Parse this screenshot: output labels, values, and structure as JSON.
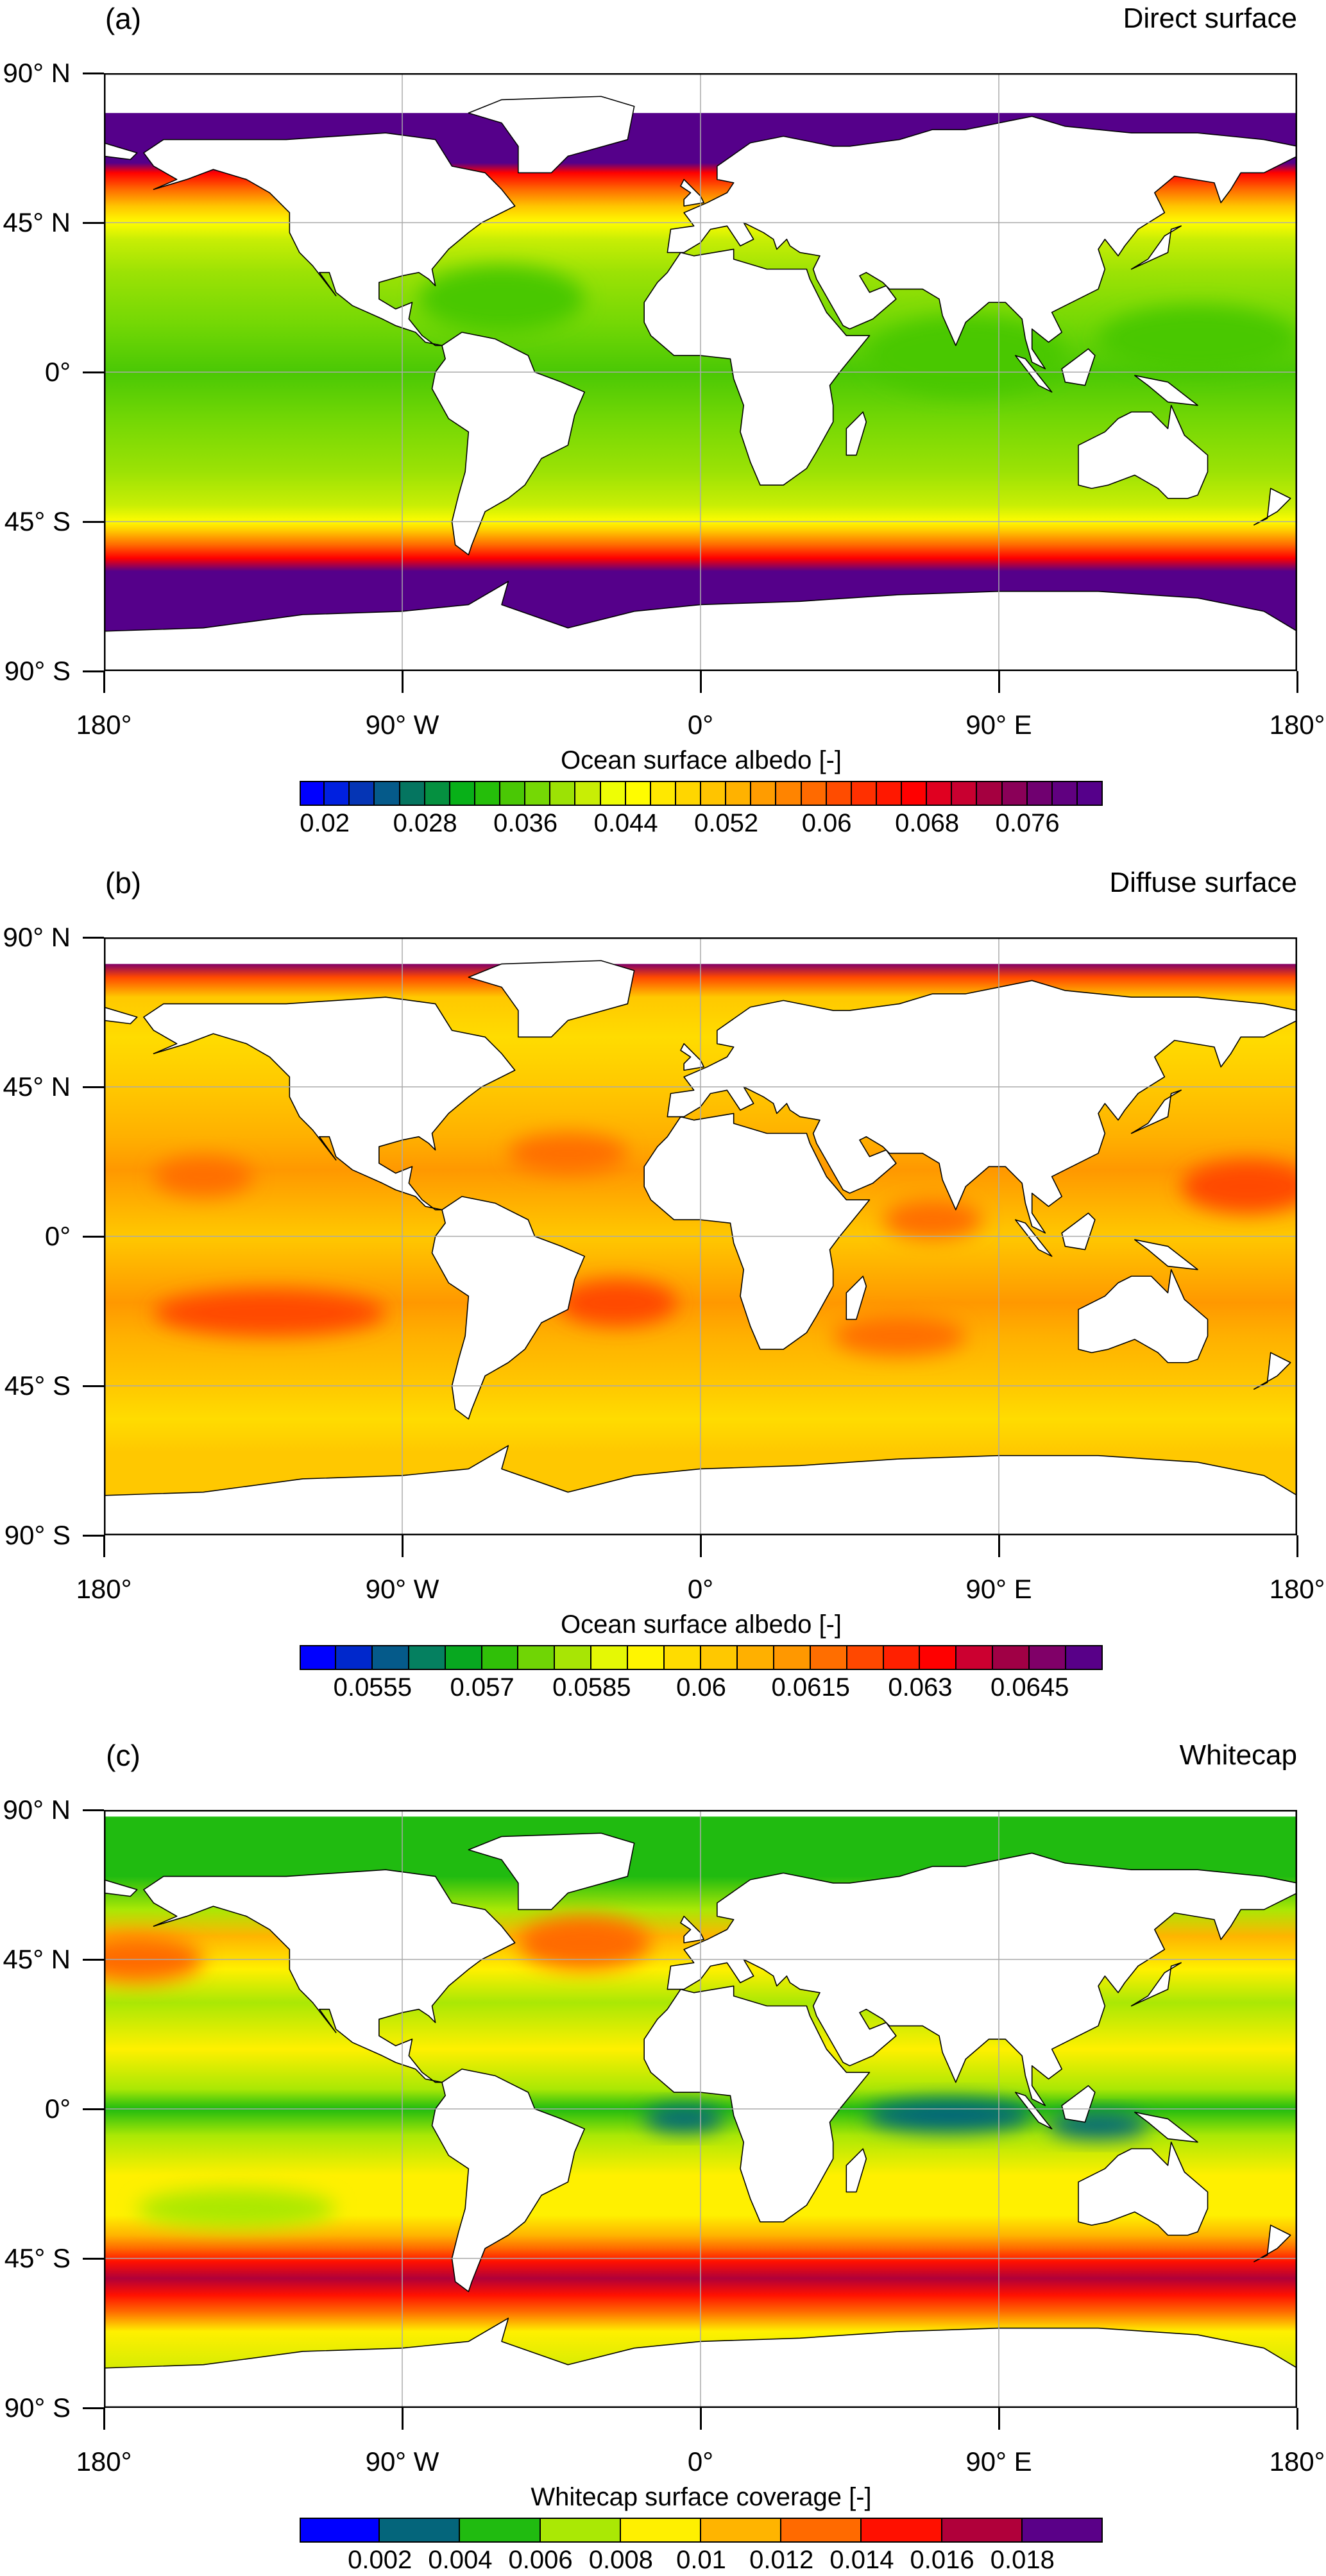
{
  "chart_data": [
    {
      "type": "heatmap",
      "panel_label": "(a)",
      "title": "Direct surface",
      "x_tick_labels": [
        "180°",
        "90° W",
        "0°",
        "90° E",
        "180°"
      ],
      "x_tick_values": [
        -180,
        -90,
        0,
        90,
        180
      ],
      "y_tick_labels": [
        "90° N",
        "45° N",
        "0°",
        "45° S",
        "90° S"
      ],
      "y_tick_values": [
        90,
        45,
        0,
        -45,
        -90
      ],
      "xlim": [
        -180,
        180
      ],
      "ylim": [
        -90,
        90
      ],
      "grid": true,
      "colorbar": {
        "label": "Ocean surface albedo [-]",
        "levels": [
          0.02,
          0.022,
          0.024,
          0.026,
          0.028,
          0.03,
          0.032,
          0.034,
          0.036,
          0.038,
          0.04,
          0.042,
          0.044,
          0.046,
          0.048,
          0.05,
          0.052,
          0.054,
          0.056,
          0.058,
          0.06,
          0.062,
          0.064,
          0.066,
          0.068,
          0.07,
          0.072,
          0.074,
          0.076,
          0.078,
          0.08
        ],
        "tick_labels": [
          "0.02",
          "0.028",
          "0.036",
          "0.044",
          "0.052",
          "0.06",
          "0.068",
          "0.076"
        ],
        "tick_values": [
          0.02,
          0.028,
          0.036,
          0.044,
          0.052,
          0.06,
          0.068,
          0.076
        ],
        "colors": [
          "#0000ff",
          "#0020e0",
          "#0535b5",
          "#055a8a",
          "#057560",
          "#059040",
          "#08b018",
          "#25be0a",
          "#4ac805",
          "#75d805",
          "#9ce205",
          "#c8ee05",
          "#eefe05",
          "#fffc00",
          "#ffe800",
          "#ffd600",
          "#ffc400",
          "#ffb200",
          "#ff9c00",
          "#ff8400",
          "#ff6a00",
          "#ff4c00",
          "#ff3000",
          "#ff1800",
          "#ff0000",
          "#e00020",
          "#c80030",
          "#a50040",
          "#8a0058",
          "#700070",
          "#600080",
          "#55008a"
        ]
      }
    },
    {
      "type": "heatmap",
      "panel_label": "(b)",
      "title": "Diffuse surface",
      "x_tick_labels": [
        "180°",
        "90° W",
        "0°",
        "90° E",
        "180°"
      ],
      "x_tick_values": [
        -180,
        -90,
        0,
        90,
        180
      ],
      "y_tick_labels": [
        "90° N",
        "45° N",
        "0°",
        "45° S",
        "90° S"
      ],
      "y_tick_values": [
        90,
        45,
        0,
        -45,
        -90
      ],
      "xlim": [
        -180,
        180
      ],
      "ylim": [
        -90,
        90
      ],
      "grid": true,
      "colorbar": {
        "label": "Ocean surface albedo [-]",
        "levels": [
          0.055,
          0.0555,
          0.056,
          0.0565,
          0.057,
          0.0575,
          0.058,
          0.0585,
          0.059,
          0.0595,
          0.06,
          0.0605,
          0.061,
          0.0615,
          0.062,
          0.0625,
          0.063,
          0.0635,
          0.064,
          0.0645,
          0.065
        ],
        "tick_labels": [
          "0.0555",
          "0.057",
          "0.0585",
          "0.06",
          "0.0615",
          "0.063",
          "0.0645"
        ],
        "tick_values": [
          0.0555,
          0.057,
          0.0585,
          0.06,
          0.0615,
          0.063,
          0.0645
        ],
        "colors": [
          "#0000ff",
          "#0028cc",
          "#055a8a",
          "#058060",
          "#08a820",
          "#30c008",
          "#70d505",
          "#a8e505",
          "#e5f805",
          "#fff500",
          "#ffdc00",
          "#ffc800",
          "#ffb000",
          "#ff9800",
          "#ff6e00",
          "#ff4800",
          "#ff2000",
          "#ff0000",
          "#cc0030",
          "#a00045",
          "#800068",
          "#580088"
        ]
      }
    },
    {
      "type": "heatmap",
      "panel_label": "(c)",
      "title": "Whitecap",
      "x_tick_labels": [
        "180°",
        "90° W",
        "0°",
        "90° E",
        "180°"
      ],
      "x_tick_values": [
        -180,
        -90,
        0,
        90,
        180
      ],
      "y_tick_labels": [
        "90° N",
        "45° N",
        "0°",
        "45° S",
        "90° S"
      ],
      "y_tick_values": [
        90,
        45,
        0,
        -45,
        -90
      ],
      "xlim": [
        -180,
        180
      ],
      "ylim": [
        -90,
        90
      ],
      "grid": true,
      "colorbar": {
        "label": "Whitecap surface coverage [-]",
        "levels": [
          0.002,
          0.004,
          0.006,
          0.008,
          0.01,
          0.012,
          0.014,
          0.016,
          0.018
        ],
        "tick_labels": [
          "0.002",
          "0.004",
          "0.006",
          "0.008",
          "0.01",
          "0.012",
          "0.014",
          "0.016",
          "0.018"
        ],
        "tick_values": [
          0.002,
          0.004,
          0.006,
          0.008,
          0.01,
          0.012,
          0.014,
          0.016,
          0.018
        ],
        "colors": [
          "#0000ff",
          "#04657b",
          "#20bb10",
          "#aae805",
          "#fff000",
          "#ffb400",
          "#ff6a00",
          "#ff1000",
          "#b0003a",
          "#5a0088"
        ]
      }
    }
  ]
}
